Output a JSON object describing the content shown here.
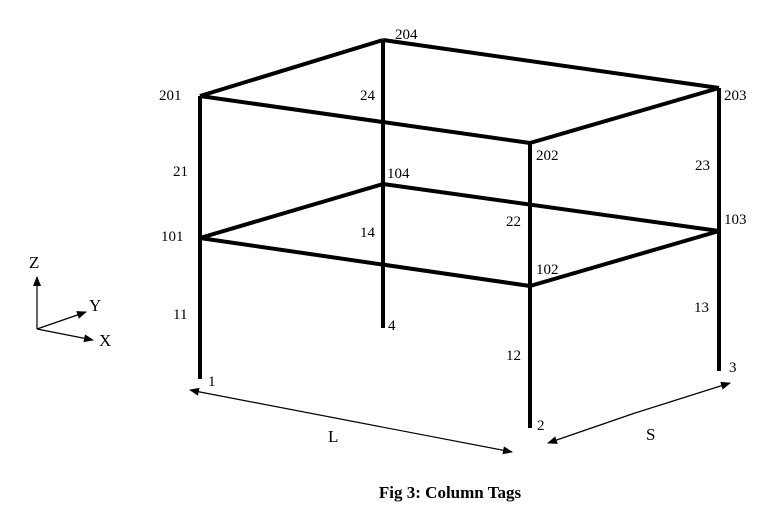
{
  "caption": "Fig 3: Column Tags",
  "colors": {
    "stroke": "#000000",
    "background": "#ffffff"
  },
  "axes": {
    "z": "Z",
    "y": "Y",
    "x": "X"
  },
  "dimensions": {
    "length": "L",
    "width": "S"
  },
  "nodes": {
    "n1": "1",
    "n2": "2",
    "n3": "3",
    "n4": "4",
    "n101": "101",
    "n102": "102",
    "n103": "103",
    "n104": "104",
    "n201": "201",
    "n202": "202",
    "n203": "203",
    "n204": "204"
  },
  "columns": {
    "c11": "11",
    "c12": "12",
    "c13": "13",
    "c14": "14",
    "c21": "21",
    "c22": "22",
    "c23": "23",
    "c24": "24"
  }
}
